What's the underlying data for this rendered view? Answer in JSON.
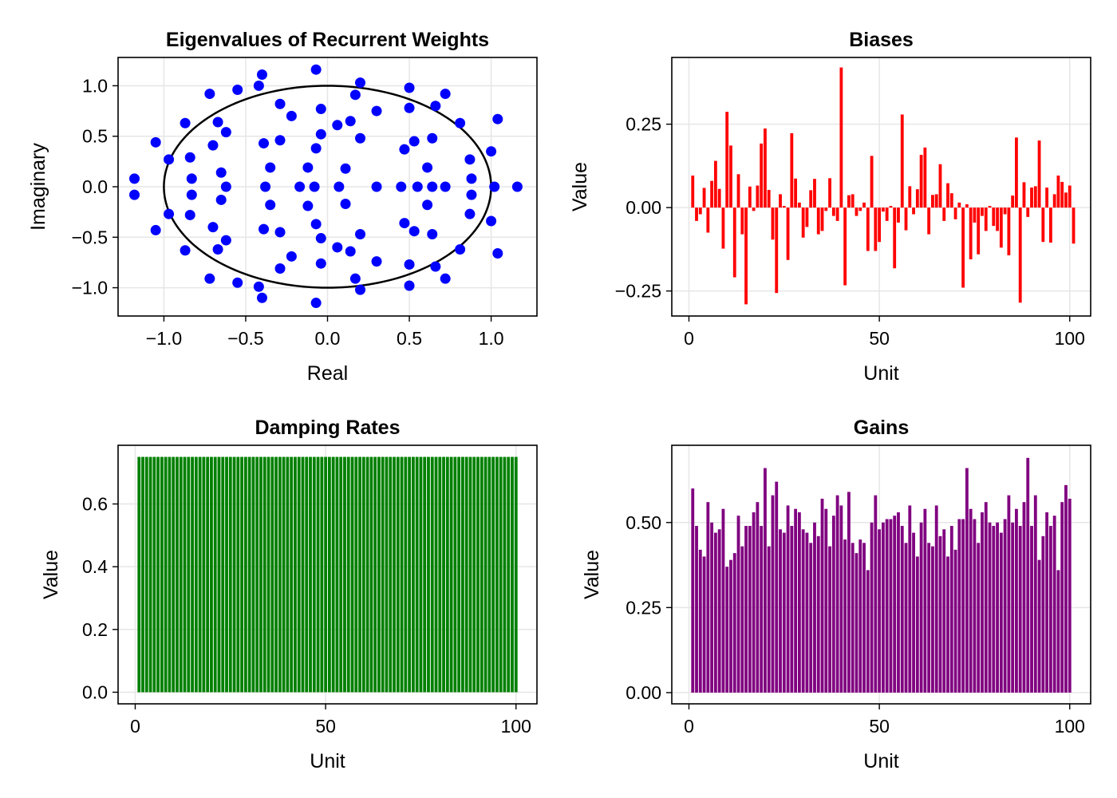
{
  "chart_data": [
    {
      "type": "scatter",
      "title": "Eigenvalues of Recurrent Weights",
      "xlabel": "Real",
      "ylabel": "Imaginary",
      "xlim": [
        -1.28,
        1.28
      ],
      "ylim": [
        -1.28,
        1.28
      ],
      "xticks": [
        -1.0,
        -0.5,
        0.0,
        0.5,
        1.0
      ],
      "xtick_labels": [
        "−1.0",
        "−0.5",
        "0.0",
        "0.5",
        "1.0"
      ],
      "yticks": [
        -1.0,
        -0.5,
        0.0,
        0.5,
        1.0
      ],
      "ytick_labels": [
        "−1.0",
        "−0.5",
        "0.0",
        "0.5",
        "1.0"
      ],
      "grid": true,
      "point_color": "#0000ff",
      "unit_circle_color": "#000000",
      "points": [
        [
          -1.18,
          0.08
        ],
        [
          -1.18,
          -0.08
        ],
        [
          -1.05,
          0.44
        ],
        [
          -1.05,
          -0.43
        ],
        [
          -0.97,
          0.27
        ],
        [
          -0.97,
          -0.27
        ],
        [
          -0.87,
          0.63
        ],
        [
          -0.87,
          -0.63
        ],
        [
          -0.84,
          0.29
        ],
        [
          -0.84,
          -0.28
        ],
        [
          -0.83,
          0.08
        ],
        [
          -0.83,
          -0.08
        ],
        [
          -0.72,
          0.92
        ],
        [
          -0.72,
          -0.91
        ],
        [
          -0.7,
          0.41
        ],
        [
          -0.7,
          -0.4
        ],
        [
          -0.67,
          0.64
        ],
        [
          -0.67,
          -0.62
        ],
        [
          -0.65,
          0.14
        ],
        [
          -0.65,
          -0.13
        ],
        [
          -0.62,
          0.54
        ],
        [
          -0.62,
          -0.53
        ],
        [
          -0.62,
          0.0
        ],
        [
          -0.55,
          0.96
        ],
        [
          -0.55,
          -0.95
        ],
        [
          -0.42,
          1.0
        ],
        [
          -0.42,
          -0.99
        ],
        [
          -0.4,
          1.11
        ],
        [
          -0.4,
          -1.1
        ],
        [
          -0.39,
          0.43
        ],
        [
          -0.39,
          -0.42
        ],
        [
          -0.38,
          0.0
        ],
        [
          -0.35,
          0.19
        ],
        [
          -0.35,
          -0.18
        ],
        [
          -0.29,
          0.82
        ],
        [
          -0.29,
          -0.81
        ],
        [
          -0.29,
          0.46
        ],
        [
          -0.29,
          -0.45
        ],
        [
          -0.22,
          0.7
        ],
        [
          -0.22,
          -0.69
        ],
        [
          -0.17,
          0.0
        ],
        [
          -0.12,
          0.19
        ],
        [
          -0.12,
          -0.19
        ],
        [
          -0.08,
          0.0
        ],
        [
          -0.07,
          1.16
        ],
        [
          -0.07,
          -1.15
        ],
        [
          -0.07,
          0.38
        ],
        [
          -0.07,
          -0.37
        ],
        [
          -0.04,
          0.77
        ],
        [
          -0.04,
          -0.76
        ],
        [
          -0.04,
          0.52
        ],
        [
          -0.04,
          -0.51
        ],
        [
          0.06,
          0.61
        ],
        [
          0.06,
          -0.6
        ],
        [
          0.07,
          0.0
        ],
        [
          0.11,
          0.18
        ],
        [
          0.11,
          -0.17
        ],
        [
          0.14,
          0.65
        ],
        [
          0.14,
          -0.64
        ],
        [
          0.17,
          0.91
        ],
        [
          0.17,
          -0.91
        ],
        [
          0.2,
          1.03
        ],
        [
          0.2,
          -1.02
        ],
        [
          0.2,
          0.48
        ],
        [
          0.2,
          -0.47
        ],
        [
          0.3,
          0.75
        ],
        [
          0.3,
          -0.74
        ],
        [
          0.3,
          0.0
        ],
        [
          0.45,
          0.0
        ],
        [
          0.47,
          0.37
        ],
        [
          0.47,
          -0.36
        ],
        [
          0.5,
          0.98
        ],
        [
          0.5,
          -0.98
        ],
        [
          0.5,
          0.78
        ],
        [
          0.5,
          -0.77
        ],
        [
          0.53,
          0.45
        ],
        [
          0.53,
          -0.44
        ],
        [
          0.55,
          0.0
        ],
        [
          0.61,
          0.19
        ],
        [
          0.61,
          -0.18
        ],
        [
          0.64,
          0.48
        ],
        [
          0.64,
          -0.47
        ],
        [
          0.64,
          0.0
        ],
        [
          0.66,
          0.8
        ],
        [
          0.66,
          -0.79
        ],
        [
          0.72,
          0.92
        ],
        [
          0.72,
          -0.91
        ],
        [
          0.72,
          0.0
        ],
        [
          0.81,
          0.63
        ],
        [
          0.81,
          -0.62
        ],
        [
          0.87,
          0.27
        ],
        [
          0.87,
          -0.27
        ],
        [
          0.88,
          0.08
        ],
        [
          0.88,
          -0.08
        ],
        [
          1.0,
          0.35
        ],
        [
          1.0,
          -0.34
        ],
        [
          1.02,
          0.0
        ],
        [
          1.04,
          0.67
        ],
        [
          1.04,
          -0.66
        ],
        [
          1.16,
          0.0
        ]
      ]
    },
    {
      "type": "bar",
      "title": "Biases",
      "xlabel": "Unit",
      "ylabel": "Value",
      "xlim": [
        -4.5,
        105.5
      ],
      "ylim": [
        -0.325,
        0.45
      ],
      "xticks": [
        0,
        50,
        100
      ],
      "xtick_labels": [
        "0",
        "50",
        "100"
      ],
      "yticks": [
        -0.25,
        0.0,
        0.25
      ],
      "ytick_labels": [
        "−0.25",
        "0.00",
        "0.25"
      ],
      "grid": true,
      "bar_color": "#ff0000",
      "x_start": 1,
      "values": [
        0.096,
        -0.04,
        -0.02,
        0.059,
        -0.075,
        0.08,
        0.14,
        0.056,
        -0.123,
        0.287,
        0.186,
        -0.209,
        0.1,
        -0.08,
        -0.29,
        0.063,
        -0.01,
        0.066,
        0.192,
        0.237,
        0.053,
        -0.096,
        -0.256,
        0.04,
        0.005,
        -0.157,
        0.223,
        0.087,
        0.015,
        -0.09,
        -0.058,
        0.052,
        0.086,
        -0.08,
        -0.07,
        -0.01,
        0.088,
        -0.025,
        -0.04,
        0.42,
        -0.233,
        0.037,
        0.04,
        -0.025,
        -0.01,
        0.015,
        -0.13,
        0.155,
        -0.13,
        -0.103,
        -0.012,
        -0.04,
        0.005,
        -0.182,
        -0.045,
        0.279,
        -0.068,
        0.064,
        -0.02,
        0.055,
        0.158,
        0.18,
        -0.08,
        0.038,
        0.04,
        0.13,
        -0.04,
        0.073,
        0.043,
        -0.035,
        0.015,
        -0.24,
        0.01,
        -0.155,
        -0.045,
        -0.14,
        -0.025,
        -0.07,
        0.005,
        -0.055,
        -0.07,
        -0.12,
        -0.02,
        -0.143,
        0.036,
        0.21,
        -0.285,
        0.076,
        -0.028,
        0.06,
        0.064,
        0.201,
        -0.103,
        0.06,
        -0.105,
        0.04,
        0.096,
        0.077,
        0.045,
        0.066,
        -0.108
      ],
      "values_note": "101 bars"
    },
    {
      "type": "bar",
      "title": "Damping Rates",
      "xlabel": "Unit",
      "ylabel": "Value",
      "xlim": [
        -4.5,
        105.5
      ],
      "ylim": [
        -0.037,
        0.787
      ],
      "xticks": [
        0,
        50,
        100
      ],
      "xtick_labels": [
        "0",
        "50",
        "100"
      ],
      "yticks": [
        0.0,
        0.2,
        0.4,
        0.6
      ],
      "ytick_labels": [
        "0.0",
        "0.2",
        "0.4",
        "0.6"
      ],
      "grid": true,
      "bar_color": "#008000",
      "x_start": 1,
      "constant_value": 0.75,
      "count": 100
    },
    {
      "type": "bar",
      "title": "Gains",
      "xlabel": "Unit",
      "ylabel": "Value",
      "xlim": [
        -4.5,
        105.5
      ],
      "ylim": [
        -0.033,
        0.727
      ],
      "xticks": [
        0,
        50,
        100
      ],
      "xtick_labels": [
        "0",
        "50",
        "100"
      ],
      "yticks": [
        0.0,
        0.25,
        0.5
      ],
      "ytick_labels": [
        "0.00",
        "0.25",
        "0.50"
      ],
      "grid": true,
      "bar_color": "#800080",
      "x_start": 1,
      "values": [
        0.6,
        0.49,
        0.42,
        0.4,
        0.56,
        0.5,
        0.47,
        0.48,
        0.54,
        0.37,
        0.39,
        0.41,
        0.52,
        0.43,
        0.49,
        0.49,
        0.53,
        0.56,
        0.49,
        0.66,
        0.43,
        0.58,
        0.62,
        0.48,
        0.47,
        0.55,
        0.49,
        0.54,
        0.53,
        0.48,
        0.47,
        0.44,
        0.5,
        0.46,
        0.57,
        0.54,
        0.43,
        0.52,
        0.58,
        0.55,
        0.45,
        0.59,
        0.44,
        0.41,
        0.45,
        0.44,
        0.36,
        0.5,
        0.58,
        0.48,
        0.5,
        0.51,
        0.51,
        0.52,
        0.53,
        0.49,
        0.44,
        0.55,
        0.47,
        0.4,
        0.5,
        0.54,
        0.44,
        0.43,
        0.55,
        0.46,
        0.48,
        0.4,
        0.49,
        0.42,
        0.51,
        0.51,
        0.66,
        0.54,
        0.51,
        0.44,
        0.53,
        0.56,
        0.5,
        0.49,
        0.5,
        0.47,
        0.51,
        0.58,
        0.5,
        0.54,
        0.49,
        0.56,
        0.69,
        0.49,
        0.58,
        0.39,
        0.46,
        0.53,
        0.49,
        0.52,
        0.36,
        0.56,
        0.61,
        0.57
      ],
      "values_note": "100 bars"
    }
  ]
}
